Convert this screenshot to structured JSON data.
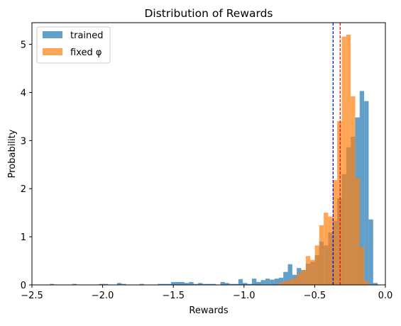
{
  "chart_data": {
    "type": "histogram",
    "title": "Distribution of Rewards",
    "xlabel": "Rewards",
    "ylabel": "Probability",
    "xlim": [
      -2.5,
      0.0
    ],
    "ylim": [
      0,
      5.45
    ],
    "x_ticks": [
      "-2.5",
      "-2.0",
      "-1.5",
      "-1.0",
      "-0.5",
      "0.0"
    ],
    "y_ticks": [
      "0",
      "1",
      "2",
      "3",
      "4",
      "5"
    ],
    "grid": false,
    "legend_position": "upper-left",
    "series": [
      {
        "name": "trained",
        "color": "#1f77b4",
        "opacity": 0.7,
        "bin_width": 0.0318,
        "bins": [
          [
            -2.375,
            0.02
          ],
          [
            -2.216,
            0.02
          ],
          [
            -2.025,
            0.02
          ],
          [
            -1.993,
            0.02
          ],
          [
            -1.898,
            0.04
          ],
          [
            -1.866,
            0.02
          ],
          [
            -1.739,
            0.02
          ],
          [
            -1.612,
            0.02
          ],
          [
            -1.58,
            0.02
          ],
          [
            -1.548,
            0.02
          ],
          [
            -1.516,
            0.06
          ],
          [
            -1.485,
            0.06
          ],
          [
            -1.453,
            0.06
          ],
          [
            -1.421,
            0.04
          ],
          [
            -1.389,
            0.06
          ],
          [
            -1.358,
            0.02
          ],
          [
            -1.326,
            0.04
          ],
          [
            -1.294,
            0.02
          ],
          [
            -1.262,
            0.02
          ],
          [
            -1.23,
            0.02
          ],
          [
            -1.167,
            0.06
          ],
          [
            -1.135,
            0.04
          ],
          [
            -1.103,
            0.02
          ],
          [
            -1.071,
            0.02
          ],
          [
            -1.04,
            0.12
          ],
          [
            -1.008,
            0.04
          ],
          [
            -0.976,
            0.02
          ],
          [
            -0.944,
            0.13
          ],
          [
            -0.913,
            0.06
          ],
          [
            -0.881,
            0.1
          ],
          [
            -0.849,
            0.13
          ],
          [
            -0.817,
            0.11
          ],
          [
            -0.785,
            0.13
          ],
          [
            -0.754,
            0.15
          ],
          [
            -0.722,
            0.27
          ],
          [
            -0.69,
            0.43
          ],
          [
            -0.658,
            0.21
          ],
          [
            -0.627,
            0.35
          ],
          [
            -0.595,
            0.31
          ],
          [
            -0.563,
            0.44
          ],
          [
            -0.531,
            0.48
          ],
          [
            -0.499,
            0.62
          ],
          [
            -0.468,
            0.9
          ],
          [
            -0.436,
            0.82
          ],
          [
            -0.404,
            1.09
          ],
          [
            -0.372,
            1.33
          ],
          [
            -0.341,
            1.8
          ],
          [
            -0.309,
            2.3
          ],
          [
            -0.277,
            2.86
          ],
          [
            -0.245,
            3.08
          ],
          [
            -0.213,
            3.48
          ],
          [
            -0.182,
            4.03
          ],
          [
            -0.15,
            3.82
          ],
          [
            -0.118,
            1.36
          ],
          [
            -0.086,
            0.04
          ]
        ]
      },
      {
        "name": "fixed φ",
        "color": "#ff7f0e",
        "opacity": 0.7,
        "bin_width": 0.0318,
        "bins": [
          [
            -0.754,
            0.05
          ],
          [
            -0.722,
            0.08
          ],
          [
            -0.69,
            0.1
          ],
          [
            -0.658,
            0.14
          ],
          [
            -0.627,
            0.24
          ],
          [
            -0.595,
            0.31
          ],
          [
            -0.563,
            0.6
          ],
          [
            -0.531,
            0.52
          ],
          [
            -0.499,
            0.82
          ],
          [
            -0.468,
            1.24
          ],
          [
            -0.436,
            1.5
          ],
          [
            -0.404,
            1.42
          ],
          [
            -0.372,
            2.18
          ],
          [
            -0.341,
            3.4
          ],
          [
            -0.309,
            5.16
          ],
          [
            -0.277,
            5.2
          ],
          [
            -0.245,
            3.92
          ],
          [
            -0.213,
            2.22
          ],
          [
            -0.182,
            0.78
          ],
          [
            -0.15,
            0.08
          ]
        ]
      }
    ],
    "reference_lines": [
      {
        "axis": "x",
        "value": -0.37,
        "color": "#0000cc",
        "style": "dashed"
      },
      {
        "axis": "x",
        "value": -0.32,
        "color": "#ee0000",
        "style": "dashed"
      }
    ]
  }
}
